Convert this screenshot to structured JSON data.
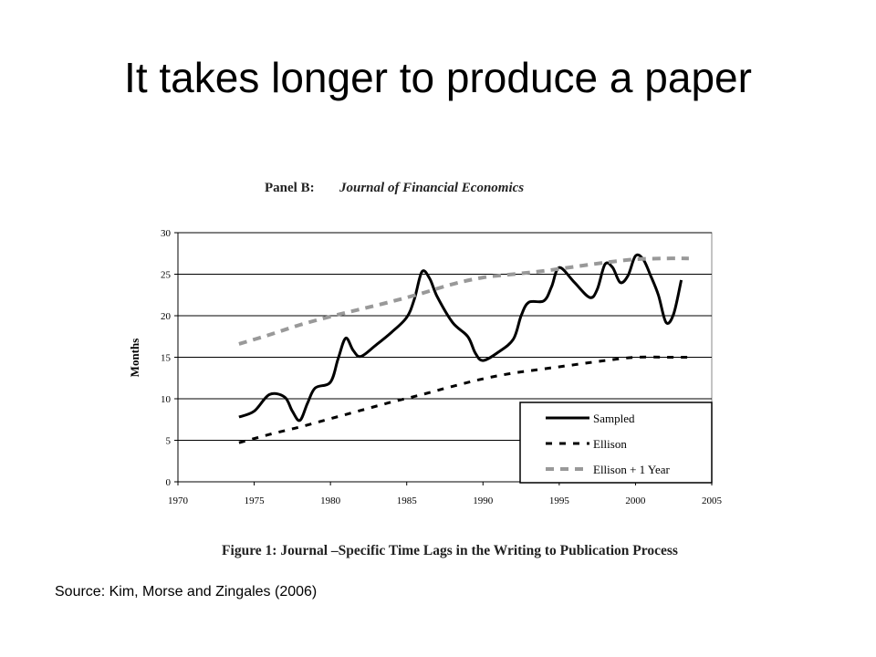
{
  "slide": {
    "title": "It takes longer to produce a paper",
    "source": "Source: Kim, Morse and Zingales (2006)"
  },
  "chart_data": {
    "type": "line",
    "panel_label": "Panel B:",
    "panel_journal": "Journal of Financial Economics",
    "caption": "Figure 1: Journal –Specific Time Lags in the Writing to Publication Process",
    "xlabel": "",
    "ylabel": "Months",
    "xlim": [
      1970,
      2005
    ],
    "ylim": [
      0,
      30
    ],
    "xticks": [
      1970,
      1975,
      1980,
      1985,
      1990,
      1995,
      2000,
      2005
    ],
    "yticks": [
      0,
      5,
      10,
      15,
      20,
      25,
      30
    ],
    "grid": "horizontal",
    "legend_position": "bottom-right",
    "series": [
      {
        "name": "Sampled",
        "style": "solid",
        "color": "#000000",
        "x": [
          1974,
          1975,
          1976,
          1977,
          1977.5,
          1978,
          1978.5,
          1979,
          1980,
          1980.5,
          1981,
          1981.5,
          1982,
          1983,
          1984,
          1985,
          1985.5,
          1986,
          1986.5,
          1987,
          1988,
          1989,
          1989.5,
          1990,
          1991,
          1992,
          1992.5,
          1993,
          1994,
          1994.5,
          1995,
          1996,
          1997,
          1997.5,
          1998,
          1998.5,
          1999,
          1999.5,
          2000,
          2000.5,
          2001,
          2001.5,
          2002,
          2002.5,
          2003
        ],
        "y": [
          7.8,
          8.5,
          10.5,
          10.2,
          8.5,
          7.4,
          9.5,
          11.3,
          12,
          14.8,
          17.3,
          15.8,
          15.1,
          16.5,
          18,
          19.8,
          22,
          25.3,
          24.5,
          22.3,
          19.2,
          17.5,
          15.5,
          14.6,
          15.6,
          17.2,
          20,
          21.6,
          21.8,
          23.5,
          25.8,
          24,
          22.2,
          23.2,
          26.2,
          25.8,
          24,
          24.8,
          27.2,
          26.8,
          24.8,
          22.5,
          19.2,
          20.2,
          24.3
        ]
      },
      {
        "name": "Ellison",
        "style": "dashed",
        "color": "#000000",
        "x": [
          1974,
          1976,
          1978,
          1980,
          1982,
          1984,
          1986,
          1988,
          1990,
          1992,
          1994,
          1996,
          1998,
          2000,
          2002,
          2003.5
        ],
        "y": [
          4.7,
          5.7,
          6.6,
          7.6,
          8.6,
          9.6,
          10.5,
          11.5,
          12.4,
          13.1,
          13.6,
          14.1,
          14.6,
          15.0,
          15.0,
          15.0
        ]
      },
      {
        "name": "Ellison + 1 Year",
        "style": "dashed",
        "color": "#999999",
        "x": [
          1974,
          1976,
          1978,
          1980,
          1982,
          1984,
          1986,
          1988,
          1990,
          1992,
          1994,
          1996,
          1998,
          2000,
          2002,
          2003.5
        ],
        "y": [
          16.6,
          17.7,
          18.9,
          19.9,
          20.8,
          21.7,
          22.7,
          23.8,
          24.6,
          25.0,
          25.4,
          25.9,
          26.4,
          26.8,
          26.9,
          26.9
        ]
      }
    ]
  }
}
